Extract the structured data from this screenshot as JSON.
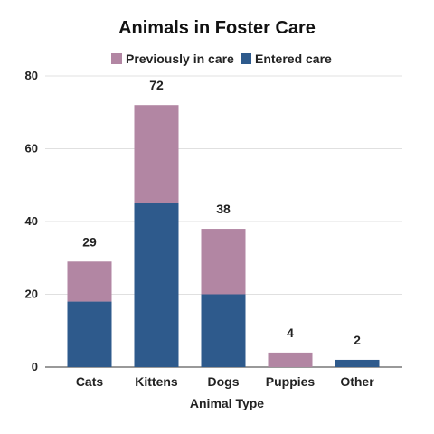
{
  "chart_data": {
    "type": "bar",
    "stacked": true,
    "title": "Animals in Foster Care",
    "xlabel": "Animal Type",
    "ylabel": "",
    "categories": [
      "Cats",
      "Kittens",
      "Dogs",
      "Puppies",
      "Other"
    ],
    "series": [
      {
        "name": "Entered care",
        "color": "#2e5a8c",
        "values": [
          18,
          45,
          20,
          0,
          2
        ]
      },
      {
        "name": "Previously in care",
        "color": "#b286a3",
        "values": [
          11,
          27,
          18,
          4,
          0
        ]
      }
    ],
    "totals": [
      "29",
      "72",
      "38",
      "4",
      "2"
    ],
    "legend_order": [
      "Previously in care",
      "Entered care"
    ],
    "legend_position": "top",
    "ylim": [
      0,
      80
    ],
    "yticks": [
      "0",
      "20",
      "40",
      "60",
      "80"
    ],
    "grid": true
  }
}
